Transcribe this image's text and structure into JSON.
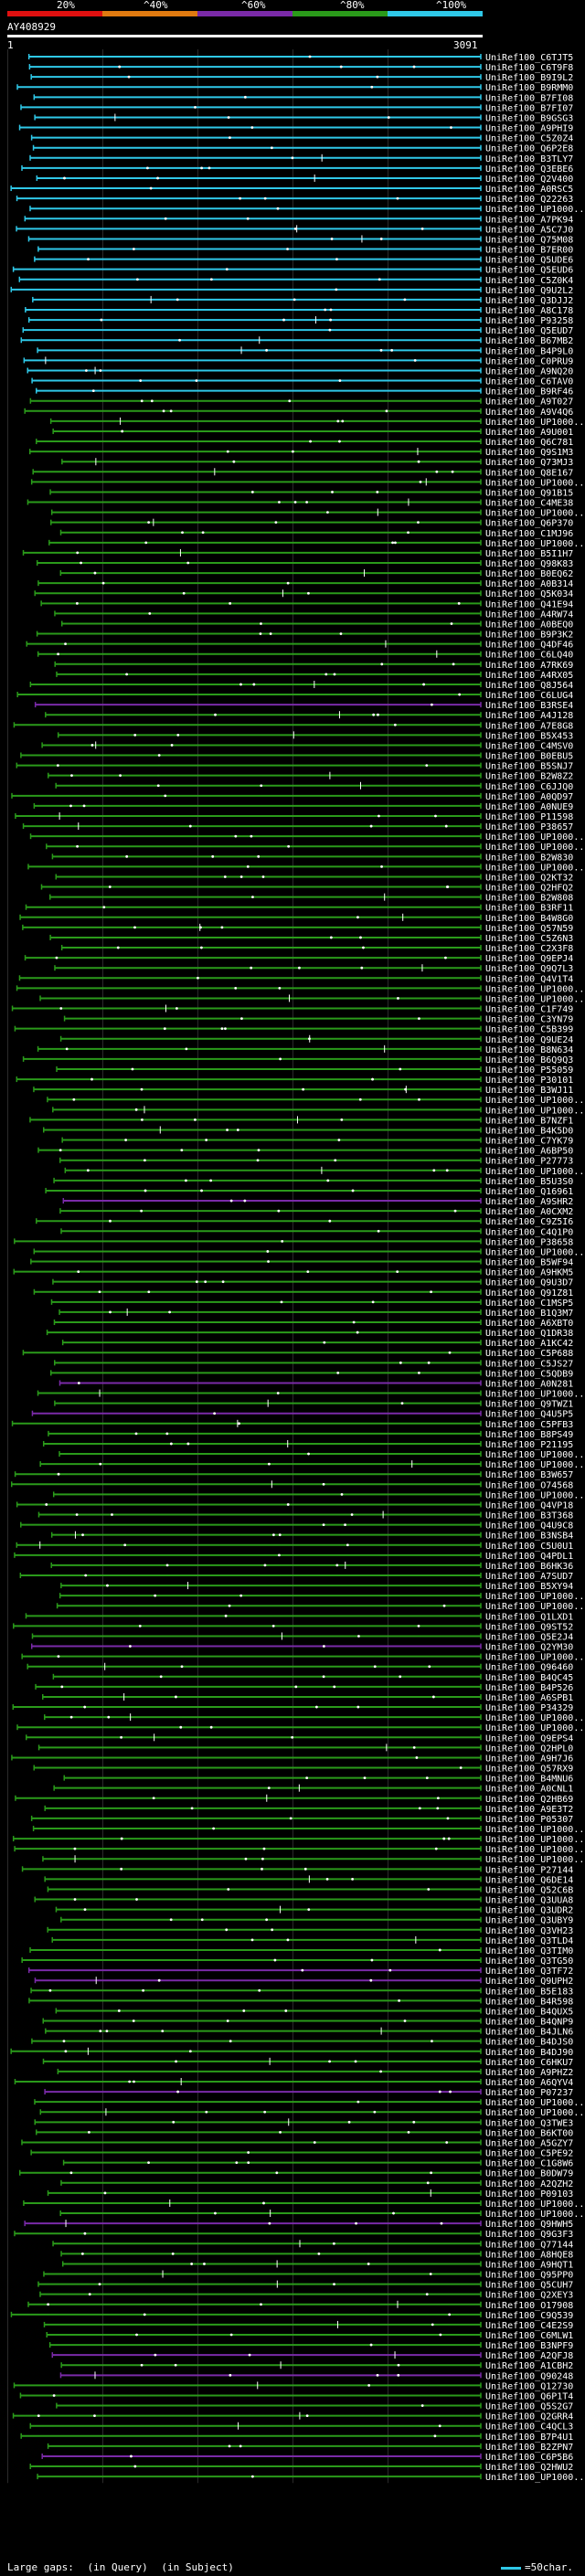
{
  "query_id": "AY408929",
  "ruler": {
    "start": "1",
    "end": "3091"
  },
  "identity_scale": {
    "labels": [
      "20%",
      "^40%",
      "^60%",
      "^80%",
      "^100%"
    ],
    "colors": [
      "#e01010",
      "#e07a10",
      "#7a2aa8",
      "#2a9a1a",
      "#2fc8e8"
    ]
  },
  "footer": {
    "large_gaps": "Large gaps:",
    "in_query": "(in Query)",
    "in_subject": "(in Subject)",
    "scale": "=50char."
  },
  "chart_data": {
    "type": "alignment-overview",
    "query_length": 3091,
    "hit_count": 245,
    "labels": [
      "UniRef100_C6TJT5",
      "UniRef100_C6T9F8",
      "UniRef100_B9I9L2",
      "UniRef100_B9RMM0",
      "UniRef100_B7FI08",
      "UniRef100_B7FI07",
      "UniRef100_B9GSG3",
      "UniRef100_A9PHI9",
      "UniRef100_C5Z0Z4",
      "UniRef100_Q6P2E8",
      "UniRef100_B3TLY7",
      "UniRef100_Q3EBE6",
      "UniRef100_Q2V400",
      "UniRef100_A0RSC5",
      "UniRef100_Q22263",
      "UniRef100_UP1000...",
      "UniRef100_A7PK94",
      "UniRef100_A5C7J0",
      "UniRef100_Q75M08",
      "UniRef100_B7ER00",
      "UniRef100_Q5UDE6",
      "UniRef100_Q5EUD6",
      "UniRef100_C5Z0K4",
      "UniRef100_Q9U2L2",
      "UniRef100_Q3DJJ2",
      "UniRef100_A8C178",
      "UniRef100_P93258",
      "UniRef100_Q5EUD7",
      "UniRef100_B67MB2",
      "UniRef100_B4P9L0",
      "UniRef100_C0PRU9",
      "UniRef100_A9NQ20",
      "UniRef100_C6TAV0",
      "UniRef100_B9RF46",
      "UniRef100_A9T027",
      "UniRef100_A9V4Q6",
      "UniRef100_UP1000...",
      "UniRef100_A9U001",
      "UniRef100_Q6C781",
      "UniRef100_Q9S1M3",
      "UniRef100_Q73MJ3",
      "UniRef100_Q8E167",
      "UniRef100_UP1000...",
      "UniRef100_Q91B15",
      "UniRef100_C4ME38",
      "UniRef100_UP1000...",
      "UniRef100_Q6P370",
      "UniRef100_C1MJ96",
      "UniRef100_UP1000...",
      "UniRef100_B5I1H7",
      "UniRef100_Q98K83",
      "UniRef100_B0EQ62",
      "UniRef100_A0B314",
      "UniRef100_Q5K034",
      "UniRef100_Q41E94",
      "UniRef100_A4RW74",
      "UniRef100_A0BEQ0",
      "UniRef100_B9P3K2",
      "UniRef100_Q4DF46",
      "UniRef100_C6LQ40",
      "UniRef100_A7RK69",
      "UniRef100_A4RX05",
      "UniRef100_Q8J564",
      "UniRef100_C6LUG4",
      "UniRef100_B3RSE4",
      "UniRef100_A4J128",
      "UniRef100_A7E8G8",
      "UniRef100_B5X453",
      "UniRef100_C4MSV0",
      "UniRef100_B0EBU5",
      "UniRef100_B5SNJ7",
      "UniRef100_B2W8Z2",
      "UniRef100_C6JJQ0",
      "UniRef100_A0QD97",
      "UniRef100_A0NUE9",
      "UniRef100_P11598",
      "UniRef100_P38657",
      "UniRef100_UP1000...",
      "UniRef100_UP1000...",
      "UniRef100_B2W830",
      "UniRef100_UP1000...",
      "UniRef100_Q2KT32",
      "UniRef100_Q2HFQ2",
      "UniRef100_B2W808",
      "UniRef100_B3RF11",
      "UniRef100_B4W8G0",
      "UniRef100_Q57N59",
      "UniRef100_C5Z6N3",
      "UniRef100_C2X3F8",
      "UniRef100_Q9EPJ4",
      "UniRef100_Q9Q7L3",
      "UniRef100_Q4V1T4",
      "UniRef100_UP1000...",
      "UniRef100_UP1000...",
      "UniRef100_C1F749",
      "UniRef100_C3YN79",
      "UniRef100_C5B399",
      "UniRef100_Q9UE24",
      "UniRef100_B8N634",
      "UniRef100_B6Q9Q3",
      "UniRef100_P55059",
      "UniRef100_P30101",
      "UniRef100_B3WJ11",
      "UniRef100_UP1000...",
      "UniRef100_UP1000...",
      "UniRef100_B7NZF1",
      "UniRef100_B4K5D0",
      "UniRef100_C7YK79",
      "UniRef100_A6BP50",
      "UniRef100_P27773",
      "UniRef100_UP1000...",
      "UniRef100_B5U3S0",
      "UniRef100_Q16961",
      "UniRef100_A9SHR2",
      "UniRef100_A0CXM2",
      "UniRef100_C9Z5I6",
      "UniRef100_C4Q1P0",
      "UniRef100_P38658",
      "UniRef100_UP1000...",
      "UniRef100_B5WF94",
      "UniRef100_A9HKM5",
      "UniRef100_Q9U3D7",
      "UniRef100_Q91Z81",
      "UniRef100_C1MSP5",
      "UniRef100_B1Q3M7",
      "UniRef100_A6XBT0",
      "UniRef100_Q1DR38",
      "UniRef100_A1KC42",
      "UniRef100_C5P688",
      "UniRef100_C5JS27",
      "UniRef100_C5QDB9",
      "UniRef100_A0N281",
      "UniRef100_UP1000...",
      "UniRef100_Q9TWZ1",
      "UniRef100_Q4U5P5",
      "UniRef100_C5PFB3",
      "UniRef100_B8PS49",
      "UniRef100_P21195",
      "UniRef100_UP1000...",
      "UniRef100_UP1000...",
      "UniRef100_B3W657",
      "UniRef100_O74568",
      "UniRef100_UP1000...",
      "UniRef100_Q4VP18",
      "UniRef100_B3T368",
      "UniRef100_Q4U9C8",
      "UniRef100_B3NSB4",
      "UniRef100_C5U0U1",
      "UniRef100_Q4PDL1",
      "UniRef100_B6HK36",
      "UniRef100_A7SUD7",
      "UniRef100_B5XY94",
      "UniRef100_UP1000...",
      "UniRef100_UP1000...",
      "UniRef100_Q1LXD1",
      "UniRef100_Q9ST52",
      "UniRef100_Q5E2J4",
      "UniRef100_Q2YM30",
      "UniRef100_UP1000...",
      "UniRef100_Q96460",
      "UniRef100_B4QC45",
      "UniRef100_B4P526",
      "UniRef100_A6SPB1",
      "UniRef100_P34329",
      "UniRef100_UP1000...",
      "UniRef100_UP1000...",
      "UniRef100_Q9EPS4",
      "UniRef100_Q2HPL0",
      "UniRef100_A9H7J6",
      "UniRef100_Q57RX9",
      "UniRef100_B4MNU6",
      "UniRef100_A0CNL1",
      "UniRef100_Q2HB69",
      "UniRef100_A9E3T2",
      "UniRef100_P05307",
      "UniRef100_UP1000...",
      "UniRef100_UP1000...",
      "UniRef100_UP1000...",
      "UniRef100_UP1000...",
      "UniRef100_P27144",
      "UniRef100_Q6DE14",
      "UniRef100_Q52C6B",
      "UniRef100_Q3UUA8",
      "UniRef100_Q3UDR2",
      "UniRef100_Q3UBY9",
      "UniRef100_Q3VH23",
      "UniRef100_Q3TLD4",
      "UniRef100_Q3TIM0",
      "UniRef100_Q3TG50",
      "UniRef100_Q3TF72",
      "UniRef100_Q9UPH2",
      "UniRef100_B5E183",
      "UniRef100_B4R598",
      "UniRef100_B4QUX5",
      "UniRef100_B4QNP9",
      "UniRef100_B4JLN6",
      "UniRef100_B4DJS0",
      "UniRef100_B4DJ90",
      "UniRef100_C6HKU7",
      "UniRef100_A9PHZ2",
      "UniRef100_A6QYV4",
      "UniRef100_P07237",
      "UniRef100_UP1000...",
      "UniRef100_UP1000...",
      "UniRef100_Q3TWE3",
      "UniRef100_B6KT00",
      "UniRef100_A5GZY7",
      "UniRef100_C5PE92",
      "UniRef100_C1G8W6",
      "UniRef100_B0DW79",
      "UniRef100_A2QZH2",
      "UniRef100_P09103",
      "UniRef100_UP1000...",
      "UniRef100_UP1000...",
      "UniRef100_Q9HWH5",
      "UniRef100_Q9G3F3",
      "UniRef100_Q77144",
      "UniRef100_A8HQE8",
      "UniRef100_A9HQT1",
      "UniRef100_Q95PP0",
      "UniRef100_Q5CUH7",
      "UniRef100_Q2XEY3",
      "UniRef100_O17908",
      "UniRef100_C9Q539",
      "UniRef100_C4E2S9",
      "UniRef100_C6MLW1",
      "UniRef100_B3NPF9",
      "UniRef100_A2QFJ8",
      "UniRef100_A1CBH2",
      "UniRef100_Q90248",
      "UniRef100_Q12730",
      "UniRef100_Q6P1T4",
      "UniRef100_Q5S2G7",
      "UniRef100_Q2GRR4",
      "UniRef100_C4QCL3",
      "UniRef100_B7P4U1",
      "UniRef100_B2ZPN7",
      "UniRef100_C6P5B6",
      "UniRef100_Q2HWU2",
      "UniRef100_UP1000..."
    ]
  }
}
